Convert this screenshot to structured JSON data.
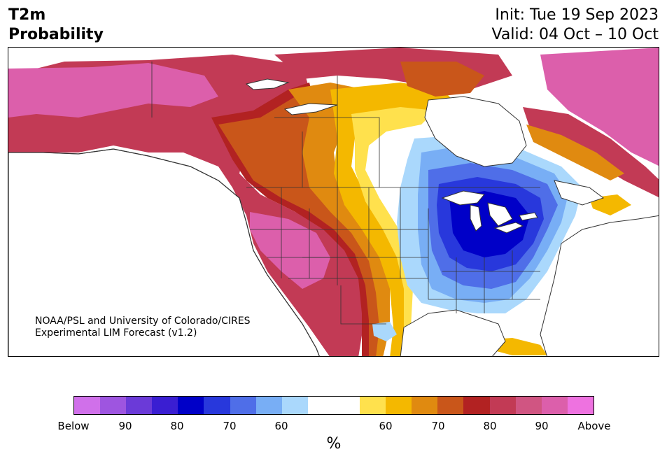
{
  "header": {
    "title_line1": "T2m",
    "title_line2": "Probability",
    "init": "Init: Tue 19 Sep 2023",
    "valid": "Valid: 04 Oct – 10 Oct"
  },
  "credit": {
    "line1": "NOAA/PSL and University of Colorado/CIRES",
    "line2": "Experimental LIM Forecast (v1.2)"
  },
  "colorbar": {
    "colors": [
      "#d070ea",
      "#9e55e0",
      "#6b3ad8",
      "#3a1ed2",
      "#0000c8",
      "#2838dc",
      "#4f6ee8",
      "#78aef5",
      "#aad8fc",
      "#ffffff",
      "#ffffff",
      "#ffe14d",
      "#f4b800",
      "#e08a10",
      "#c9561a",
      "#b22222",
      "#c23a55",
      "#d05582",
      "#dc5fab",
      "#ee72e0"
    ],
    "tick_labels": [
      "Below",
      "90",
      "80",
      "70",
      "60",
      "60",
      "70",
      "80",
      "90",
      "Above"
    ],
    "unit": "%"
  },
  "map_colors": {
    "land": "#ffffff",
    "border": "#333333",
    "above_90": "#dc5fab",
    "above_80": "#c23a55",
    "above_75": "#b22222",
    "above_70": "#c9561a",
    "above_65": "#e08a10",
    "above_60": "#f4b800",
    "above_55": "#ffe14d",
    "below_55": "#aad8fc",
    "below_60": "#78aef5",
    "below_65": "#4f6ee8",
    "below_70": "#2838dc",
    "below_75": "#0000c8"
  }
}
